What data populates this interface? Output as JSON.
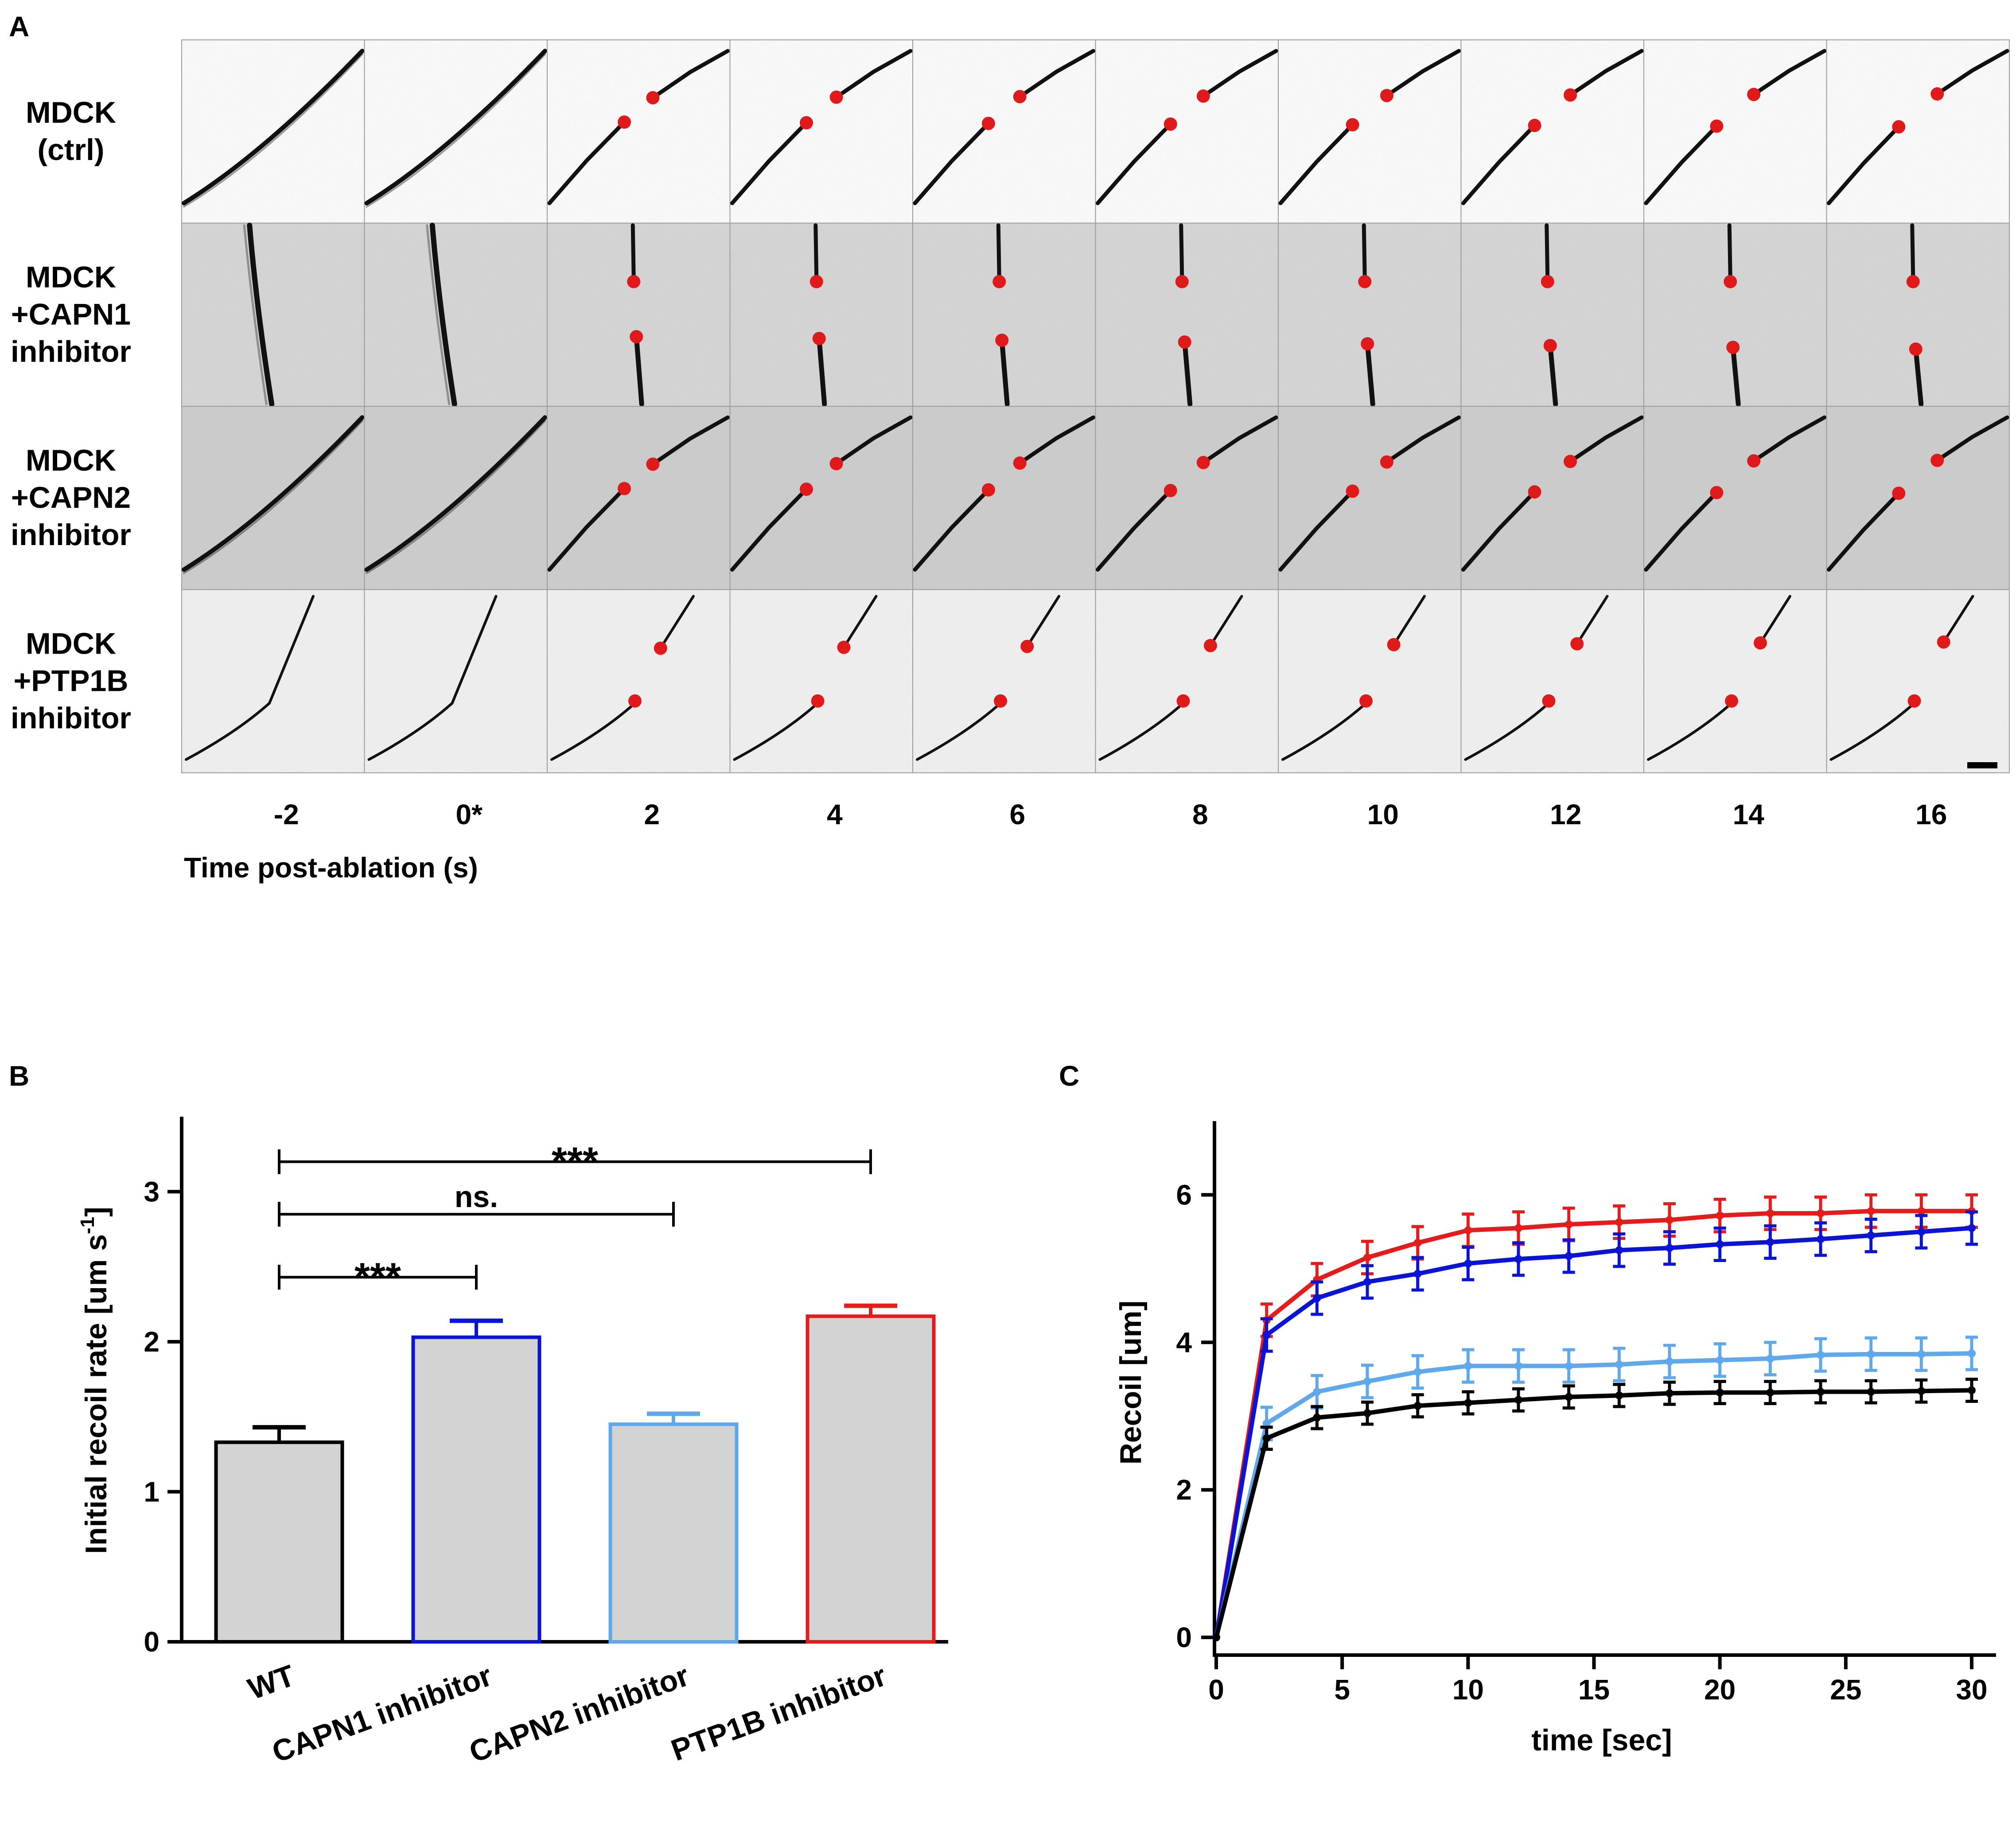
{
  "panel_a": {
    "label": "A",
    "row_labels": [
      [
        "MDCK",
        "(ctrl)"
      ],
      [
        "MDCK",
        "+CAPN1",
        "inhibitor"
      ],
      [
        "MDCK",
        "+CAPN2",
        "inhibitor"
      ],
      [
        "MDCK",
        "+PTP1B",
        "inhibitor"
      ]
    ],
    "time_labels": [
      "-2",
      "0*",
      "2",
      "4",
      "6",
      "8",
      "10",
      "12",
      "14",
      "16"
    ],
    "highlight_time_label": "0*",
    "highlight_color": "#cc0000",
    "marker_color": "#e0191b",
    "xlabel": "Time post-ablation (s)"
  },
  "chart_data": [
    {
      "panel": "B",
      "type": "bar",
      "categories": [
        "WT",
        "CAPN1 inhibitor",
        "CAPN2 inhibitor",
        "PTP1B inhibitor"
      ],
      "values": [
        1.33,
        2.03,
        1.45,
        2.17
      ],
      "errors": [
        0.1,
        0.11,
        0.07,
        0.07
      ],
      "colors": [
        "#000000",
        "#0a14d6",
        "#5fa8ec",
        "#e61b1b"
      ],
      "fill": "#d3d3d3",
      "ylabel": "Initial recoil rate [um s",
      "ylabel_sup": "-1",
      "ylabel_end": "]",
      "ylim": [
        0,
        3.5
      ],
      "yticks": [
        0,
        1,
        2,
        3
      ],
      "significance": [
        {
          "from": 0,
          "to": 3,
          "y": 3.2,
          "label": "***"
        },
        {
          "from": 0,
          "to": 2,
          "y": 2.85,
          "label": "ns."
        },
        {
          "from": 0,
          "to": 1,
          "y": 2.43,
          "label": "***"
        }
      ]
    },
    {
      "panel": "C",
      "type": "line",
      "x": [
        0,
        2,
        4,
        6,
        8,
        10,
        12,
        14,
        16,
        18,
        20,
        22,
        24,
        26,
        28,
        30
      ],
      "series": [
        {
          "name": "PTP1B inhibitor",
          "color": "#e61b1b",
          "values": [
            0,
            4.3,
            4.85,
            5.15,
            5.35,
            5.52,
            5.55,
            5.6,
            5.63,
            5.66,
            5.72,
            5.75,
            5.75,
            5.78,
            5.78,
            5.78
          ],
          "error": 0.22
        },
        {
          "name": "CAPN1 inhibitor",
          "color": "#0a14d6",
          "values": [
            0,
            4.1,
            4.6,
            4.82,
            4.93,
            5.07,
            5.13,
            5.17,
            5.25,
            5.28,
            5.33,
            5.36,
            5.4,
            5.45,
            5.5,
            5.55
          ],
          "error": 0.22
        },
        {
          "name": "CAPN2 inhibitor",
          "color": "#5fa8ec",
          "values": [
            0,
            2.9,
            3.33,
            3.47,
            3.6,
            3.68,
            3.68,
            3.68,
            3.7,
            3.74,
            3.76,
            3.78,
            3.83,
            3.84,
            3.84,
            3.85
          ],
          "error": 0.22
        },
        {
          "name": "WT",
          "color": "#000000",
          "values": [
            0,
            2.7,
            2.98,
            3.04,
            3.14,
            3.18,
            3.22,
            3.26,
            3.28,
            3.31,
            3.32,
            3.32,
            3.33,
            3.33,
            3.34,
            3.35
          ],
          "error": 0.15
        }
      ],
      "xlabel": "time [sec]",
      "ylabel": "Recoil [um]",
      "xlim": [
        0,
        30
      ],
      "ylim": [
        0,
        7
      ],
      "xticks": [
        0,
        5,
        10,
        15,
        20,
        25,
        30
      ],
      "yticks": [
        0,
        2,
        4,
        6
      ]
    }
  ]
}
